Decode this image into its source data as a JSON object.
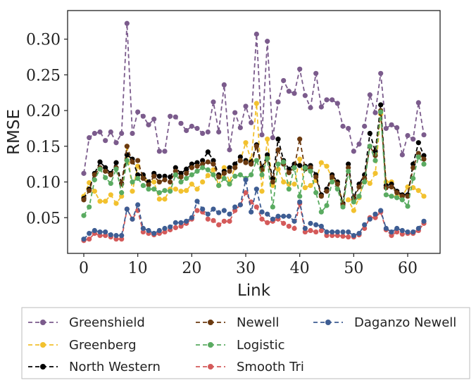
{
  "chart_data": {
    "type": "line",
    "xlabel": "Link",
    "ylabel": "RMSE",
    "xlim": [
      -3,
      66
    ],
    "ylim": [
      0.0,
      0.34
    ],
    "xticks": [
      0,
      10,
      20,
      30,
      40,
      50,
      60
    ],
    "yticks": [
      0.05,
      0.1,
      0.15,
      0.2,
      0.25,
      0.3
    ],
    "yticklabels": [
      "0.05",
      "0.10",
      "0.15",
      "0.20",
      "0.25",
      "0.30"
    ],
    "grid": false,
    "legend_position": "below-plot",
    "series": [
      {
        "name": "Greenshield",
        "color": "#7b5b8c",
        "values": [
          0.112,
          0.162,
          0.168,
          0.17,
          0.158,
          0.17,
          0.155,
          0.168,
          0.322,
          0.168,
          0.198,
          0.192,
          0.18,
          0.188,
          0.143,
          0.143,
          0.192,
          0.191,
          0.182,
          0.172,
          0.178,
          0.175,
          0.168,
          0.17,
          0.212,
          0.17,
          0.236,
          0.145,
          0.197,
          0.176,
          0.206,
          0.183,
          0.307,
          0.166,
          0.297,
          0.162,
          0.212,
          0.242,
          0.227,
          0.224,
          0.258,
          0.221,
          0.204,
          0.252,
          0.205,
          0.215,
          0.215,
          0.21,
          0.178,
          0.175,
          0.143,
          0.153,
          0.178,
          0.222,
          0.197,
          0.252,
          0.175,
          0.18,
          0.176,
          0.138,
          0.165,
          0.16,
          0.211,
          0.166
        ]
      },
      {
        "name": "Greenberg",
        "color": "#f2c12e",
        "values": [
          0.08,
          0.099,
          0.087,
          0.073,
          0.073,
          0.082,
          0.07,
          0.08,
          0.15,
          0.087,
          0.122,
          0.108,
          0.1,
          0.1,
          0.076,
          0.076,
          0.09,
          0.09,
          0.087,
          0.088,
          0.097,
          0.09,
          0.1,
          0.109,
          0.117,
          0.095,
          0.12,
          0.1,
          0.12,
          0.13,
          0.155,
          0.13,
          0.21,
          0.087,
          0.16,
          0.095,
          0.118,
          0.1,
          0.097,
          0.097,
          0.132,
          0.092,
          0.095,
          0.102,
          0.127,
          0.122,
          0.105,
          0.1,
          0.07,
          0.075,
          0.06,
          0.078,
          0.105,
          0.098,
          0.112,
          0.195,
          0.1,
          0.1,
          0.08,
          0.08,
          0.093,
          0.092,
          0.088,
          0.08
        ]
      },
      {
        "name": "North Western",
        "color": "#000000",
        "values": [
          0.077,
          0.09,
          0.112,
          0.128,
          0.12,
          0.112,
          0.127,
          0.098,
          0.138,
          0.132,
          0.11,
          0.11,
          0.1,
          0.112,
          0.108,
          0.108,
          0.107,
          0.12,
          0.112,
          0.118,
          0.125,
          0.127,
          0.13,
          0.142,
          0.13,
          0.11,
          0.115,
          0.12,
          0.125,
          0.135,
          0.13,
          0.128,
          0.152,
          0.12,
          0.138,
          0.105,
          0.16,
          0.13,
          0.118,
          0.125,
          0.123,
          0.122,
          0.123,
          0.11,
          0.082,
          0.09,
          0.11,
          0.1,
          0.07,
          0.125,
          0.078,
          0.097,
          0.11,
          0.168,
          0.143,
          0.208,
          0.095,
          0.097,
          0.087,
          0.082,
          0.082,
          0.125,
          0.155,
          0.137
        ]
      },
      {
        "name": "Newell",
        "color": "#6b3a10",
        "values": [
          0.075,
          0.088,
          0.11,
          0.12,
          0.115,
          0.11,
          0.12,
          0.097,
          0.15,
          0.128,
          0.13,
          0.105,
          0.096,
          0.108,
          0.1,
          0.103,
          0.1,
          0.115,
          0.107,
          0.112,
          0.12,
          0.122,
          0.125,
          0.128,
          0.125,
          0.107,
          0.112,
          0.115,
          0.12,
          0.13,
          0.127,
          0.125,
          0.15,
          0.117,
          0.133,
          0.1,
          0.145,
          0.125,
          0.113,
          0.12,
          0.16,
          0.118,
          0.12,
          0.107,
          0.08,
          0.087,
          0.107,
          0.097,
          0.068,
          0.12,
          0.075,
          0.093,
          0.105,
          0.15,
          0.137,
          0.2,
          0.092,
          0.093,
          0.085,
          0.08,
          0.08,
          0.12,
          0.14,
          0.132
        ]
      },
      {
        "name": "Logistic",
        "color": "#5aab61",
        "values": [
          0.053,
          0.065,
          0.103,
          0.118,
          0.106,
          0.098,
          0.118,
          0.085,
          0.13,
          0.1,
          0.105,
          0.095,
          0.09,
          0.09,
          0.085,
          0.088,
          0.087,
          0.11,
          0.1,
          0.105,
          0.11,
          0.115,
          0.12,
          0.117,
          0.11,
          0.095,
          0.105,
          0.097,
          0.108,
          0.11,
          0.105,
          0.11,
          0.13,
          0.11,
          0.133,
          0.065,
          0.125,
          0.128,
          0.09,
          0.12,
          0.08,
          0.12,
          0.115,
          0.085,
          0.058,
          0.067,
          0.1,
          0.09,
          0.065,
          0.115,
          0.072,
          0.08,
          0.1,
          0.15,
          0.13,
          0.198,
          0.082,
          0.08,
          0.078,
          0.075,
          0.066,
          0.105,
          0.135,
          0.125
        ]
      },
      {
        "name": "Smooth Tri",
        "color": "#d45a5a",
        "values": [
          0.018,
          0.02,
          0.028,
          0.025,
          0.025,
          0.023,
          0.02,
          0.02,
          0.062,
          0.048,
          0.06,
          0.03,
          0.028,
          0.026,
          0.028,
          0.03,
          0.033,
          0.036,
          0.038,
          0.042,
          0.048,
          0.06,
          0.058,
          0.048,
          0.046,
          0.04,
          0.045,
          0.045,
          0.06,
          0.068,
          0.085,
          0.072,
          0.065,
          0.048,
          0.043,
          0.045,
          0.048,
          0.042,
          0.038,
          0.035,
          0.07,
          0.03,
          0.032,
          0.03,
          0.032,
          0.025,
          0.025,
          0.025,
          0.024,
          0.023,
          0.023,
          0.026,
          0.035,
          0.05,
          0.05,
          0.058,
          0.033,
          0.025,
          0.03,
          0.027,
          0.028,
          0.028,
          0.032,
          0.042
        ]
      },
      {
        "name": "Daganzo Newell",
        "color": "#3e5d93",
        "values": [
          0.02,
          0.028,
          0.032,
          0.03,
          0.03,
          0.026,
          0.025,
          0.025,
          0.062,
          0.048,
          0.068,
          0.035,
          0.032,
          0.028,
          0.032,
          0.035,
          0.037,
          0.043,
          0.043,
          0.045,
          0.05,
          0.073,
          0.062,
          0.055,
          0.062,
          0.057,
          0.06,
          0.055,
          0.065,
          0.068,
          0.103,
          0.058,
          0.09,
          0.058,
          0.055,
          0.048,
          0.052,
          0.052,
          0.052,
          0.045,
          0.072,
          0.035,
          0.042,
          0.04,
          0.038,
          0.03,
          0.03,
          0.03,
          0.03,
          0.03,
          0.025,
          0.028,
          0.04,
          0.048,
          0.055,
          0.06,
          0.035,
          0.03,
          0.035,
          0.032,
          0.03,
          0.03,
          0.035,
          0.045
        ]
      }
    ]
  }
}
